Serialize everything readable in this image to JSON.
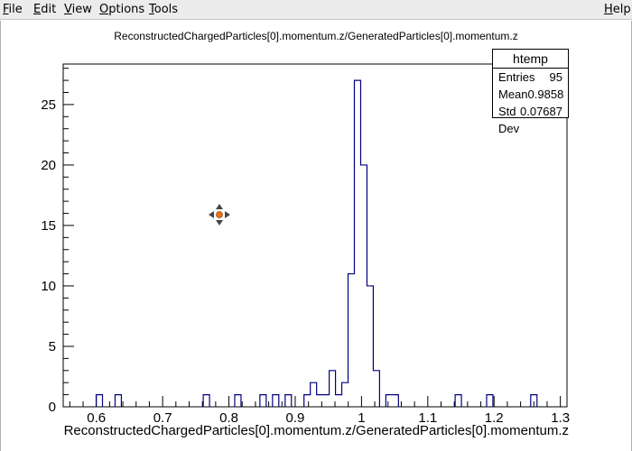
{
  "menu": {
    "file": {
      "key": "F",
      "rest": "ile"
    },
    "edit": {
      "key": "E",
      "rest": "dit"
    },
    "view": {
      "key": "V",
      "rest": "iew"
    },
    "options": {
      "key": "O",
      "rest": "ptions"
    },
    "tools": {
      "key": "T",
      "rest": "ools"
    },
    "help": {
      "key": "H",
      "rest": "elp"
    }
  },
  "stats": {
    "name": "htemp",
    "entries_label": "Entries",
    "entries_value": "95",
    "mean_label": "Mean",
    "mean_value": "0.9858",
    "std_label": "Std Dev",
    "std_value": "0.07687"
  },
  "chart_data": {
    "type": "bar",
    "title": "ReconstructedChargedParticles[0].momentum.z/GeneratedParticles[0].momentum.z",
    "xlabel": "ReconstructedChargedParticles[0].momentum.z/GeneratedParticles[0].momentum.z",
    "ylabel": "",
    "xlim": [
      0.55,
      1.31
    ],
    "ylim": [
      0,
      28.35
    ],
    "x_ticks": [
      "0.6",
      "0.7",
      "0.8",
      "0.9",
      "1",
      "1.1",
      "1.2",
      "1.3"
    ],
    "y_ticks": [
      "0",
      "5",
      "10",
      "15",
      "20",
      "25"
    ],
    "bin_width": 0.0095,
    "bins": [
      {
        "x": 0.6045,
        "y": 1
      },
      {
        "x": 0.633,
        "y": 1
      },
      {
        "x": 0.766,
        "y": 1
      },
      {
        "x": 0.8135,
        "y": 1
      },
      {
        "x": 0.8515,
        "y": 1
      },
      {
        "x": 0.8705,
        "y": 1
      },
      {
        "x": 0.8895,
        "y": 1
      },
      {
        "x": 0.918,
        "y": 1
      },
      {
        "x": 0.9275,
        "y": 2
      },
      {
        "x": 0.937,
        "y": 1
      },
      {
        "x": 0.9465,
        "y": 1
      },
      {
        "x": 0.956,
        "y": 3
      },
      {
        "x": 0.9655,
        "y": 1
      },
      {
        "x": 0.975,
        "y": 2
      },
      {
        "x": 0.9845,
        "y": 11
      },
      {
        "x": 0.994,
        "y": 27
      },
      {
        "x": 1.0035,
        "y": 20
      },
      {
        "x": 1.013,
        "y": 10
      },
      {
        "x": 1.0225,
        "y": 3
      },
      {
        "x": 1.0415,
        "y": 1
      },
      {
        "x": 1.051,
        "y": 1
      },
      {
        "x": 1.146,
        "y": 1
      },
      {
        "x": 1.1935,
        "y": 1
      },
      {
        "x": 1.26,
        "y": 1
      }
    ]
  }
}
